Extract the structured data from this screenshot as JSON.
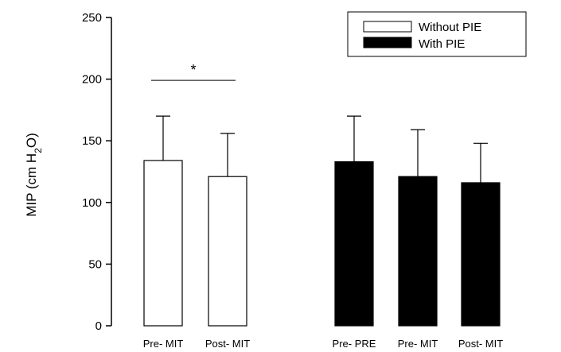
{
  "chart_data": {
    "type": "bar",
    "ylabel": {
      "prefix": "MIP (cm H",
      "subscript": "2",
      "suffix": "O)"
    },
    "ylim": [
      0,
      250
    ],
    "yticks": [
      0,
      50,
      100,
      150,
      200,
      250
    ],
    "grid": false,
    "legend_position": "top-right",
    "legend": [
      {
        "label": "Without PIE",
        "fill": "#ffffff"
      },
      {
        "label": "With PIE",
        "fill": "#000000"
      }
    ],
    "bars": [
      {
        "category": "Pre- MIT",
        "series": "Without PIE",
        "value": 134,
        "error": 36
      },
      {
        "category": "Post- MIT",
        "series": "Without PIE",
        "value": 121,
        "error": 35
      },
      {
        "category": "Pre- PRE",
        "series": "With PIE",
        "value": 133,
        "error": 37
      },
      {
        "category": "Pre- MIT",
        "series": "With PIE",
        "value": 121,
        "error": 38
      },
      {
        "category": "Post- MIT",
        "series": "With PIE",
        "value": 116,
        "error": 32
      }
    ],
    "annotations": [
      {
        "text": "*",
        "type": "significance",
        "between": [
          0,
          1
        ],
        "y": 199
      }
    ]
  }
}
